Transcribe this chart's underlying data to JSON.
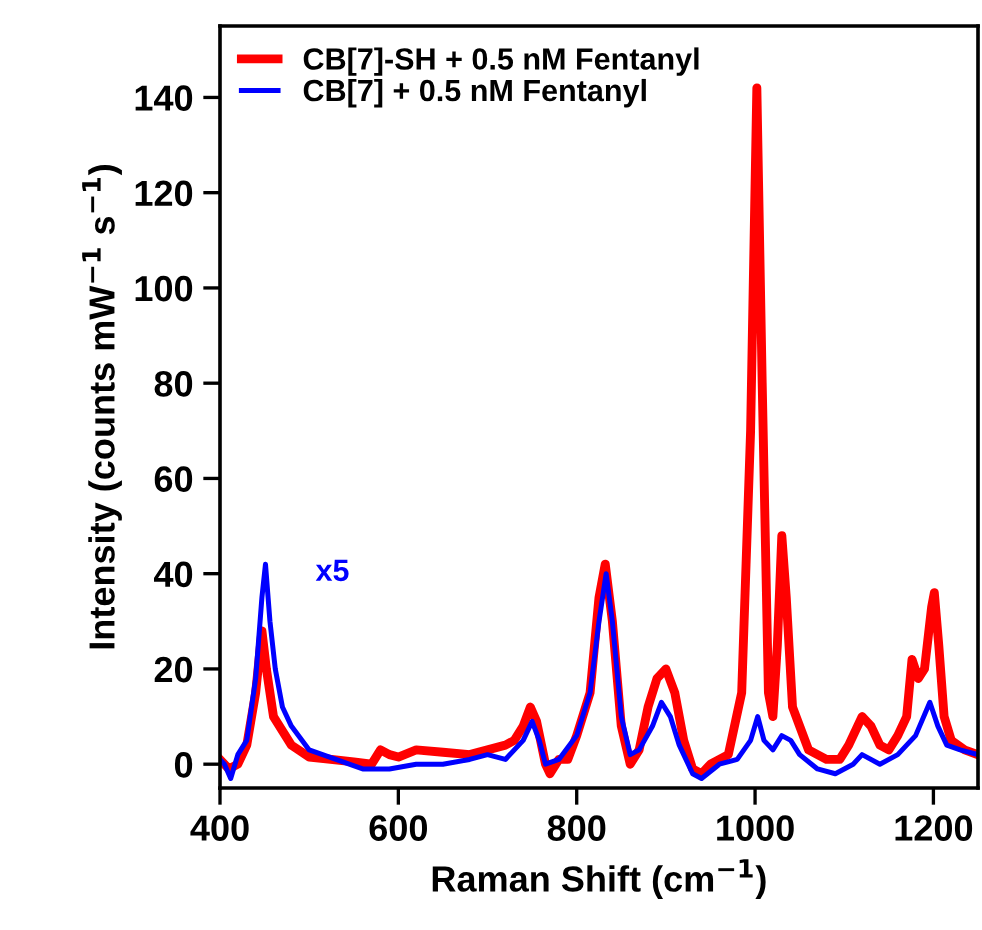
{
  "chart_data": {
    "type": "line",
    "xlabel": "Raman Shift (cm$^{−1}$)",
    "ylabel": "Intensity (counts mW$^{−1}$ s$^{−1}$)",
    "xlim": [
      400,
      1250
    ],
    "xticks": [
      400,
      600,
      800,
      1000,
      1200
    ],
    "ylim": [
      -5,
      155
    ],
    "yticks": [
      0,
      20,
      40,
      60,
      80,
      100,
      120,
      140
    ],
    "grid": false,
    "legend": "top left",
    "marker": "none",
    "line_style": "solid",
    "annotations": [
      {
        "text": "x5",
        "x": 451,
        "y": 42
      }
    ],
    "series": [
      {
        "name": "CB[7]-SH + 0.5 nM Fentanyl",
        "color": "#ff0000",
        "x": [
          400,
          410,
          420,
          430,
          440,
          447,
          452,
          460,
          480,
          500,
          550,
          570,
          580,
          590,
          600,
          620,
          650,
          680,
          700,
          720,
          730,
          740,
          748,
          755,
          765,
          770,
          780,
          790,
          800,
          815,
          825,
          832,
          840,
          850,
          860,
          870,
          880,
          890,
          900,
          910,
          920,
          930,
          940,
          950,
          970,
          985,
          995,
          1002,
          1008,
          1015,
          1020,
          1025,
          1030,
          1035,
          1042,
          1050,
          1060,
          1080,
          1095,
          1105,
          1120,
          1130,
          1140,
          1150,
          1160,
          1170,
          1176,
          1183,
          1190,
          1198,
          1201,
          1206,
          1212,
          1220,
          1235,
          1250
        ],
        "values": [
          1,
          -1,
          0,
          4,
          15,
          28,
          20,
          10,
          4,
          1.5,
          0.5,
          0,
          3,
          2,
          1.5,
          3,
          2.5,
          2,
          3,
          4,
          5,
          8,
          12,
          9,
          0,
          -2,
          1,
          1,
          6,
          15,
          35,
          42,
          30,
          8,
          0,
          3,
          12,
          18,
          20,
          15,
          5,
          -1,
          -2,
          0,
          2,
          15,
          70,
          142,
          80,
          15,
          10,
          25,
          48,
          35,
          12,
          8,
          3,
          1,
          1,
          4,
          10,
          8,
          4,
          3,
          6,
          10,
          22,
          18,
          20,
          33,
          36,
          25,
          10,
          5,
          3,
          2
        ]
      },
      {
        "name": "CB[7] + 0.5 nM Fentanyl",
        "color": "#0000ff",
        "x": [
          400,
          405,
          412,
          420,
          430,
          440,
          447,
          451,
          456,
          462,
          470,
          480,
          500,
          530,
          560,
          590,
          620,
          650,
          680,
          700,
          720,
          740,
          750,
          758,
          765,
          780,
          800,
          815,
          825,
          833,
          840,
          850,
          860,
          870,
          885,
          895,
          905,
          915,
          930,
          940,
          960,
          980,
          995,
          1003,
          1010,
          1020,
          1030,
          1040,
          1050,
          1070,
          1090,
          1110,
          1120,
          1140,
          1160,
          1180,
          1196,
          1205,
          1215,
          1230,
          1250
        ],
        "values": [
          1,
          0,
          -3,
          2,
          5,
          18,
          35,
          42,
          30,
          20,
          12,
          8,
          3,
          1,
          -1,
          -1,
          0,
          0,
          1,
          2,
          1,
          5,
          9,
          5,
          0,
          1,
          6,
          15,
          30,
          40,
          30,
          10,
          2,
          3,
          8,
          13,
          10,
          4,
          -2,
          -3,
          0,
          1,
          5,
          10,
          5,
          3,
          6,
          5,
          2,
          -1,
          -2,
          0,
          2,
          0,
          2,
          6,
          13,
          8,
          4,
          3,
          2
        ]
      }
    ]
  }
}
